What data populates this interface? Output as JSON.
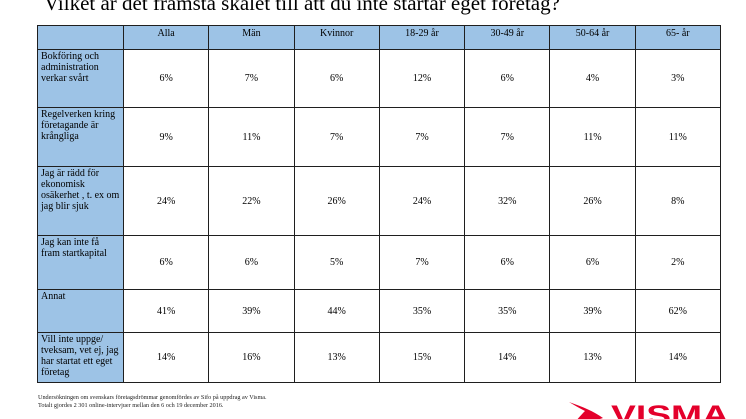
{
  "title": "Vilket är det främsta skälet till att du inte startar eget företag?",
  "table": {
    "columns": [
      "Alla",
      "Män",
      "Kvinnor",
      "18-29 år",
      "30-49 år",
      "50-64 år",
      "65- år"
    ],
    "rows": [
      {
        "label": "Bokföring och administration verkar svårt",
        "values": [
          "6%",
          "7%",
          "6%",
          "12%",
          "6%",
          "4%",
          "3%"
        ]
      },
      {
        "label": "Regelverken kring företagande är krångliga",
        "values": [
          "9%",
          "11%",
          "7%",
          "7%",
          "7%",
          "11%",
          "11%"
        ]
      },
      {
        "label": "Jag är rädd för ekonomisk osäkerhet , t. ex om jag blir sjuk",
        "values": [
          "24%",
          "22%",
          "26%",
          "24%",
          "32%",
          "26%",
          "8%"
        ]
      },
      {
        "label": "Jag kan inte få fram startkapital",
        "values": [
          "6%",
          "6%",
          "5%",
          "7%",
          "6%",
          "6%",
          "2%"
        ]
      },
      {
        "label": "Annat",
        "values": [
          "41%",
          "39%",
          "44%",
          "35%",
          "35%",
          "39%",
          "62%"
        ]
      },
      {
        "label": "Vill inte uppge/ tveksam, vet ej, jag har startat ett eget företag",
        "values": [
          "14%",
          "16%",
          "13%",
          "15%",
          "14%",
          "13%",
          "14%"
        ]
      }
    ]
  },
  "footnote": {
    "line1": "Undersökningen om svenskars företagsdrömmar genomfördes av Sifo på uppdrag av Visma.",
    "line2": "Totalt gjordes 2 301 online-intervjuer mellan den 6 och 19 december 2016."
  },
  "logo": {
    "text": "VISMA",
    "color": "#e4002b"
  },
  "colors": {
    "header_fill": "#9dc3e6",
    "border": "#1f1f1f"
  }
}
